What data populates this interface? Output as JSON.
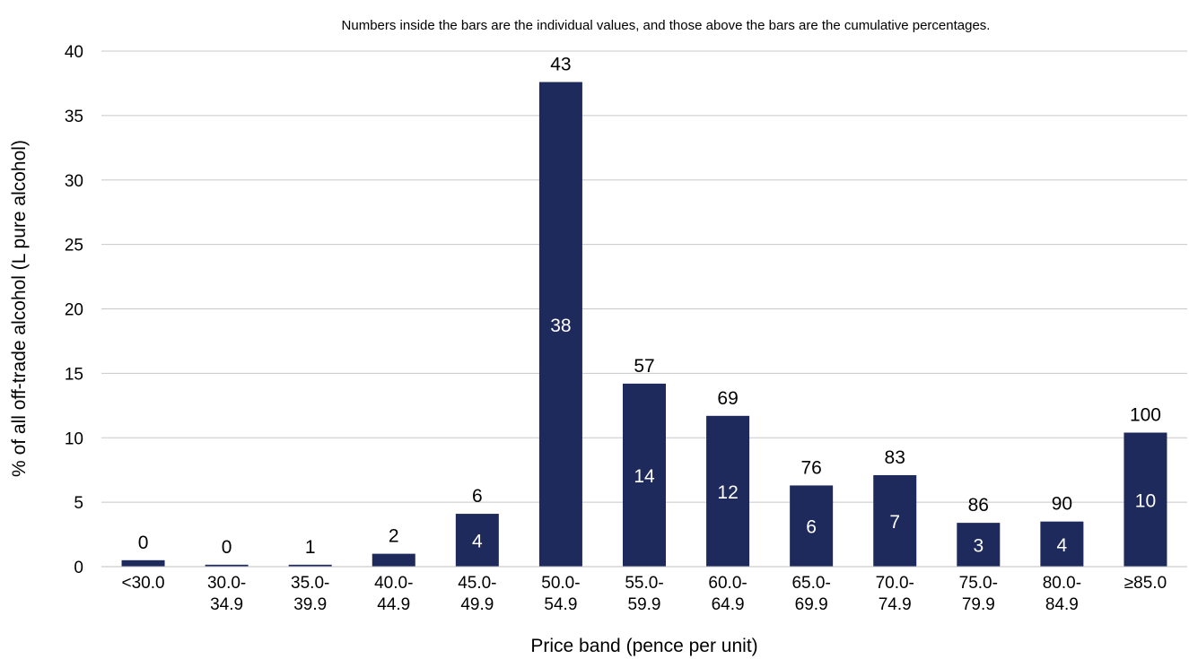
{
  "chart_data": {
    "type": "bar",
    "note": "Numbers inside the bars are the individual values, and those above the bars are the cumulative percentages.",
    "xlabel": "Price band (pence per unit)",
    "ylabel": "% of all off-trade alcohol (L pure alcohol)",
    "ylim": [
      0,
      40
    ],
    "yticks": [
      "0",
      "5",
      "10",
      "15",
      "20",
      "25",
      "30",
      "35",
      "40"
    ],
    "grid": true,
    "categories": [
      [
        "<30.0"
      ],
      [
        "30.0-",
        "34.9"
      ],
      [
        "35.0-",
        "39.9"
      ],
      [
        "40.0-",
        "44.9"
      ],
      [
        "45.0-",
        "49.9"
      ],
      [
        "50.0-",
        "54.9"
      ],
      [
        "55.0-",
        "59.9"
      ],
      [
        "60.0-",
        "64.9"
      ],
      [
        "65.0-",
        "69.9"
      ],
      [
        "70.0-",
        "74.9"
      ],
      [
        "75.0-",
        "79.9"
      ],
      [
        "80.0-",
        "84.9"
      ],
      [
        "≥85.0"
      ]
    ],
    "values": [
      0.5,
      0.15,
      0.15,
      1.0,
      4.1,
      37.6,
      14.2,
      11.7,
      6.3,
      7.1,
      3.4,
      3.5,
      10.4
    ],
    "value_labels": [
      "",
      "",
      "",
      "",
      "4",
      "38",
      "14",
      "12",
      "6",
      "7",
      "3",
      "4",
      "10"
    ],
    "cumulative_labels": [
      "0",
      "0",
      "1",
      "2",
      "6",
      "43",
      "57",
      "69",
      "76",
      "83",
      "86",
      "90",
      "100"
    ],
    "bar_color": "#1f2a5c",
    "grid_color": "#c8c8c8"
  }
}
